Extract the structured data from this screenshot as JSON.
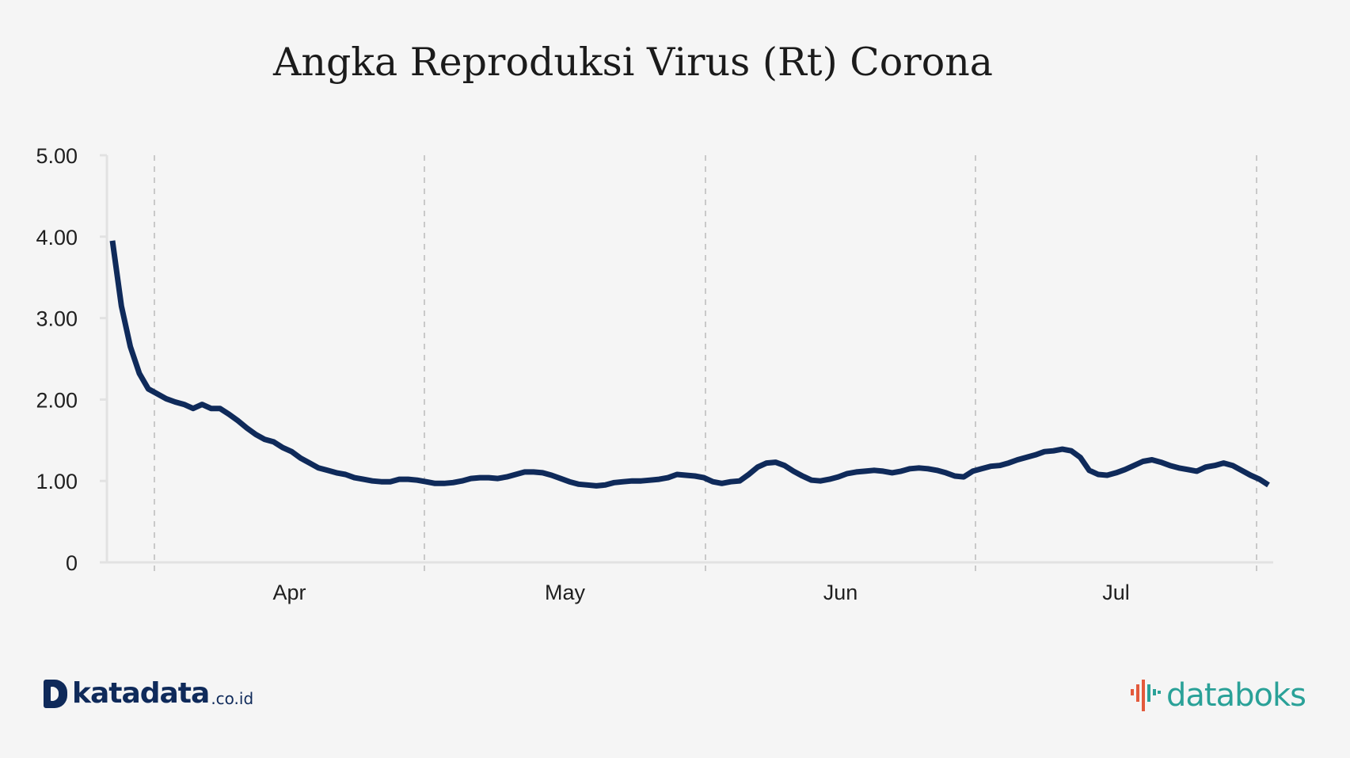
{
  "chart_data": {
    "type": "line",
    "title": "Angka Reproduksi Virus (Rt) Corona",
    "xlabel": "",
    "ylabel": "",
    "ylim": [
      0,
      5
    ],
    "y_ticks": [
      "0",
      "1.00",
      "2.00",
      "3.00",
      "4.00",
      "5.00"
    ],
    "x_ticks": [
      "Apr",
      "May",
      "Jun",
      "Jul"
    ],
    "grid": "vertical dashed",
    "line_color": "#0f2a5a",
    "series": [
      {
        "values": [
          3.95,
          3.15,
          2.65,
          2.32,
          2.13,
          2.07,
          2.01,
          1.97,
          1.94,
          1.89,
          1.94,
          1.89,
          1.89,
          1.82,
          1.74,
          1.65,
          1.57,
          1.51,
          1.48,
          1.41,
          1.36,
          1.28,
          1.22,
          1.16,
          1.13,
          1.1,
          1.08,
          1.04,
          1.02,
          1.0,
          0.99,
          0.99,
          1.02,
          1.02,
          1.01,
          0.99,
          0.97,
          0.97,
          0.98,
          1.0,
          1.03,
          1.04,
          1.04,
          1.03,
          1.05,
          1.08,
          1.11,
          1.11,
          1.1,
          1.07,
          1.03,
          0.99,
          0.96,
          0.95,
          0.94,
          0.95,
          0.98,
          0.99,
          1.0,
          1.0,
          1.01,
          1.02,
          1.04,
          1.08,
          1.07,
          1.06,
          1.04,
          0.99,
          0.97,
          0.99,
          1.0,
          1.08,
          1.17,
          1.22,
          1.23,
          1.19,
          1.12,
          1.06,
          1.01,
          1.0,
          1.02,
          1.05,
          1.09,
          1.11,
          1.12,
          1.13,
          1.12,
          1.1,
          1.12,
          1.15,
          1.16,
          1.15,
          1.13,
          1.1,
          1.06,
          1.05,
          1.12,
          1.15,
          1.18,
          1.19,
          1.22,
          1.26,
          1.29,
          1.32,
          1.36,
          1.37,
          1.39,
          1.37,
          1.29,
          1.13,
          1.08,
          1.07,
          1.1,
          1.14,
          1.19,
          1.24,
          1.26,
          1.23,
          1.19,
          1.16,
          1.14,
          1.12,
          1.17,
          1.19,
          1.22,
          1.19,
          1.13,
          1.07,
          1.02,
          0.95
        ]
      }
    ]
  },
  "branding": {
    "left_logo": "katadata",
    "left_logo_suffix": ".co.id",
    "right_logo": "databoks",
    "left_logo_color": "#0f2a5a",
    "right_logo_color": "#2aa198",
    "right_icon_color": "#e35a3c"
  }
}
